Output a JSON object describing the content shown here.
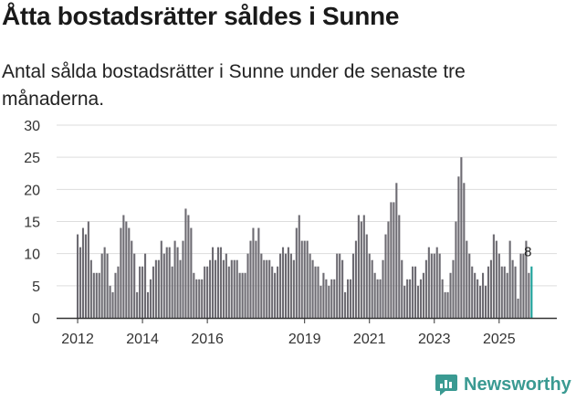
{
  "title": "Åtta bostadsrätter såldes i Sunne",
  "subtitle": "Antal sålda bostadsrätter i Sunne under de senaste tre månaderna.",
  "brand": {
    "name": "Newsworthy",
    "icon": "newsworthy-logo-icon"
  },
  "colors": {
    "bar": "#6d6b72",
    "highlight": "#1ba19a",
    "grid": "#dddddd",
    "axis": "#333333",
    "brand": "#3a9a92"
  },
  "chart_data": {
    "type": "bar",
    "title": "",
    "xlabel": "",
    "ylabel": "",
    "ylim": [
      0,
      30
    ],
    "yticks": [
      "0",
      "5",
      "10",
      "15",
      "20",
      "25",
      "30"
    ],
    "xticks": [
      {
        "label": "2012",
        "index": 0
      },
      {
        "label": "2014",
        "index": 24
      },
      {
        "label": "2016",
        "index": 48
      },
      {
        "label": "2019",
        "index": 84
      },
      {
        "label": "2021",
        "index": 108
      },
      {
        "label": "2023",
        "index": 132
      },
      {
        "label": "2025",
        "index": 156
      }
    ],
    "values": [
      13,
      11,
      14,
      13,
      15,
      9,
      7,
      7,
      7,
      10,
      11,
      10,
      5,
      4,
      7,
      8,
      14,
      16,
      15,
      14,
      12,
      10,
      4,
      8,
      8,
      10,
      4,
      6,
      8,
      9,
      9,
      12,
      10,
      11,
      11,
      8,
      12,
      11,
      9,
      12,
      17,
      16,
      14,
      7,
      6,
      6,
      6,
      8,
      8,
      9,
      11,
      9,
      11,
      11,
      9,
      10,
      8,
      9,
      9,
      9,
      7,
      7,
      7,
      10,
      12,
      14,
      12,
      14,
      10,
      9,
      9,
      9,
      8,
      7,
      8,
      10,
      11,
      10,
      11,
      10,
      9,
      14,
      16,
      12,
      12,
      12,
      10,
      9,
      8,
      8,
      5,
      7,
      6,
      5,
      6,
      6,
      10,
      10,
      9,
      4,
      6,
      6,
      10,
      12,
      16,
      15,
      16,
      13,
      10,
      9,
      7,
      6,
      6,
      9,
      13,
      15,
      18,
      18,
      21,
      16,
      9,
      5,
      6,
      6,
      8,
      8,
      5,
      6,
      7,
      9,
      11,
      10,
      10,
      11,
      10,
      6,
      4,
      4,
      7,
      9,
      15,
      22,
      25,
      21,
      12,
      10,
      8,
      7,
      6,
      5,
      7,
      5,
      8,
      9,
      13,
      12,
      10,
      8,
      8,
      7,
      12,
      9,
      8,
      3,
      10,
      10,
      12,
      7,
      8
    ],
    "highlight_index": 168,
    "highlight_label": "8"
  }
}
